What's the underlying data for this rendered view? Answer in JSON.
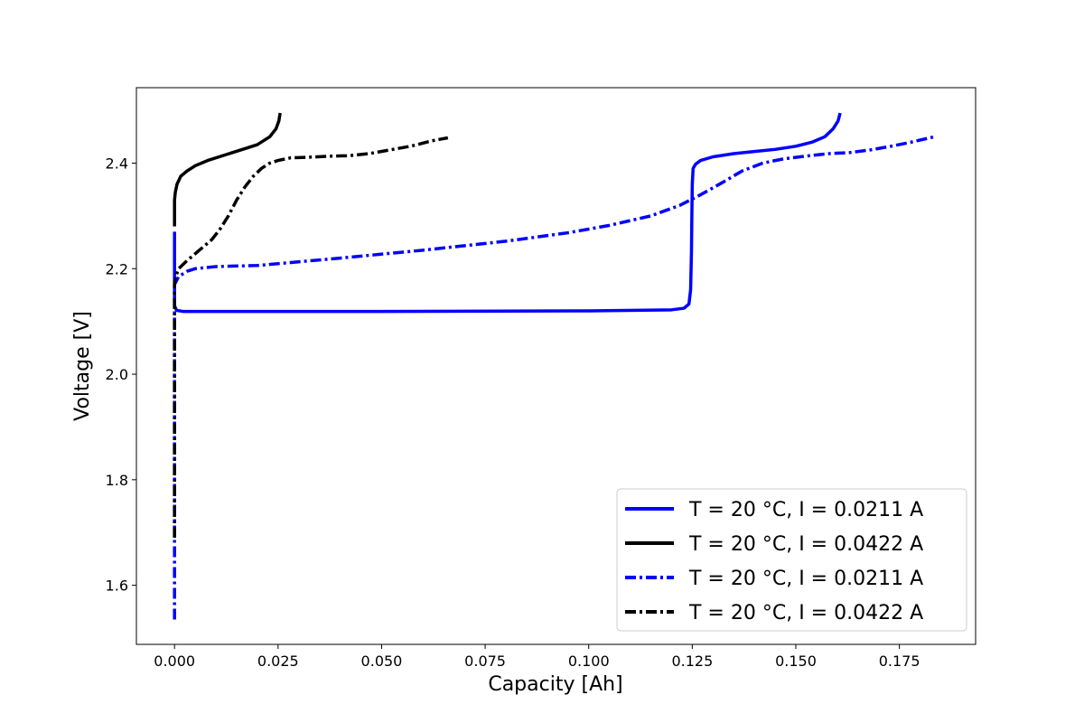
{
  "chart_data": {
    "type": "line",
    "title": "",
    "xlabel": "Capacity [Ah]",
    "ylabel": "Voltage [V]",
    "xlim": [
      -0.0092,
      0.1934
    ],
    "ylim": [
      1.488,
      2.543
    ],
    "xticks": [
      0.0,
      0.025,
      0.05,
      0.075,
      0.1,
      0.125,
      0.15,
      0.175
    ],
    "xtick_labels": [
      "0.000",
      "0.025",
      "0.050",
      "0.075",
      "0.100",
      "0.125",
      "0.150",
      "0.175"
    ],
    "yticks": [
      1.6,
      1.8,
      2.0,
      2.2,
      2.4
    ],
    "ytick_labels": [
      "1.6",
      "1.8",
      "2.0",
      "2.2",
      "2.4"
    ],
    "grid": false,
    "legend_position": "lower-right",
    "series": [
      {
        "name": "T = 20$^\\circ$C, I = 0.0211 A",
        "label": "T = 20 °C, I = 0.0211 A",
        "color": "#0000ff",
        "linestyle": "solid",
        "x": [
          0.0,
          0.0,
          0.0,
          0.0,
          0.0005,
          0.002,
          0.01,
          0.05,
          0.1,
          0.12,
          0.123,
          0.1242,
          0.1246,
          0.1248,
          0.1249,
          0.125,
          0.1252,
          0.1258,
          0.127,
          0.13,
          0.135,
          0.14,
          0.145,
          0.15,
          0.154,
          0.157,
          0.159,
          0.1602,
          0.1607
        ],
        "y": [
          2.27,
          2.2,
          2.15,
          2.13,
          2.121,
          2.119,
          2.119,
          2.119,
          2.12,
          2.122,
          2.125,
          2.133,
          2.16,
          2.23,
          2.3,
          2.36,
          2.39,
          2.398,
          2.405,
          2.412,
          2.418,
          2.422,
          2.426,
          2.432,
          2.44,
          2.45,
          2.465,
          2.48,
          2.495
        ]
      },
      {
        "name": "T = 20$^\\circ$C, I = 0.0422 A",
        "label": "T = 20 °C, I = 0.0422 A",
        "color": "#000000",
        "linestyle": "solid",
        "x": [
          0.0,
          0.0,
          0.0,
          0.0002,
          0.0006,
          0.0015,
          0.003,
          0.005,
          0.008,
          0.012,
          0.016,
          0.02,
          0.023,
          0.0245,
          0.0252,
          0.0255
        ],
        "y": [
          2.28,
          2.31,
          2.33,
          2.345,
          2.36,
          2.375,
          2.385,
          2.395,
          2.405,
          2.415,
          2.425,
          2.435,
          2.45,
          2.465,
          2.48,
          2.495
        ]
      },
      {
        "name": "T = 20$^\\circ$C, I = 0.0211 A",
        "label": "T = 20 °C, I = 0.0211 A",
        "color": "#0000ff",
        "linestyle": "dashdot",
        "x": [
          0.0,
          0.0,
          0.0,
          0.0,
          0.0,
          0.0,
          0.0,
          0.0,
          0.0,
          0.001,
          0.003,
          0.005,
          0.01,
          0.02,
          0.04,
          0.06,
          0.08,
          0.095,
          0.105,
          0.115,
          0.122,
          0.127,
          0.132,
          0.137,
          0.142,
          0.147,
          0.152,
          0.158,
          0.163,
          0.168,
          0.173,
          0.178,
          0.1835
        ],
        "y": [
          1.535,
          1.6,
          1.7,
          1.8,
          1.9,
          2.0,
          2.1,
          2.15,
          2.17,
          2.185,
          2.195,
          2.2,
          2.204,
          2.206,
          2.22,
          2.235,
          2.252,
          2.268,
          2.282,
          2.3,
          2.32,
          2.34,
          2.362,
          2.385,
          2.4,
          2.408,
          2.413,
          2.418,
          2.42,
          2.425,
          2.432,
          2.44,
          2.45
        ]
      },
      {
        "name": "T = 20$^\\circ$C, I = 0.0422 A",
        "label": "T = 20 °C, I = 0.0422 A",
        "color": "#000000",
        "linestyle": "dashdot",
        "x": [
          0.0,
          0.0,
          0.0,
          0.0,
          0.0,
          0.0,
          0.0003,
          0.001,
          0.003,
          0.006,
          0.009,
          0.011,
          0.013,
          0.015,
          0.017,
          0.019,
          0.021,
          0.023,
          0.025,
          0.028,
          0.032,
          0.037,
          0.042,
          0.047,
          0.052,
          0.057,
          0.062,
          0.066
        ],
        "y": [
          1.69,
          1.8,
          1.9,
          2.0,
          2.1,
          2.17,
          2.185,
          2.2,
          2.215,
          2.235,
          2.255,
          2.275,
          2.3,
          2.33,
          2.355,
          2.375,
          2.39,
          2.4,
          2.405,
          2.41,
          2.411,
          2.413,
          2.414,
          2.418,
          2.425,
          2.432,
          2.442,
          2.448
        ]
      }
    ]
  }
}
